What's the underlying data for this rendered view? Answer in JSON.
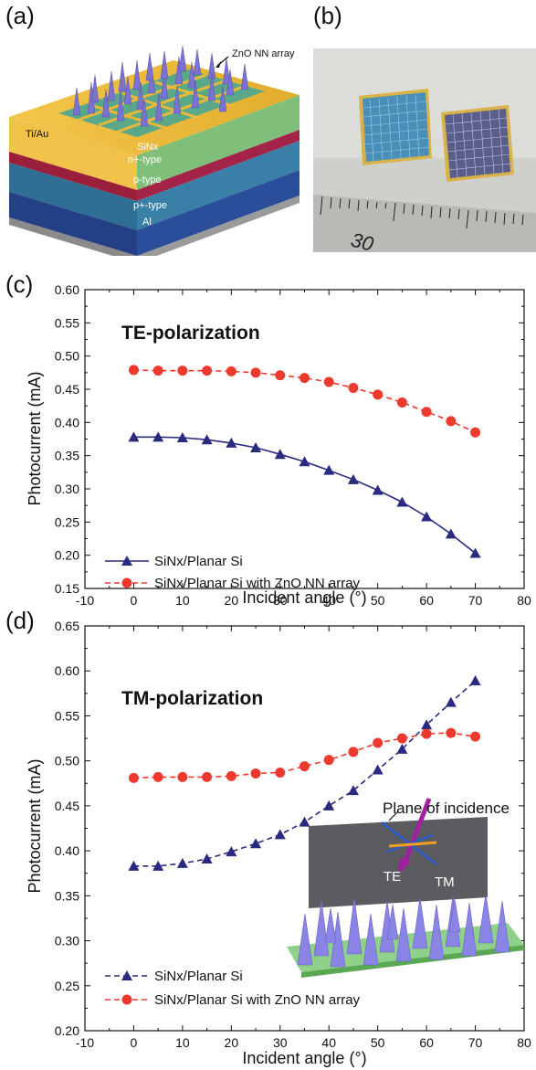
{
  "panels": {
    "a": "(a)",
    "b": "(b)",
    "c": "(c)",
    "d": "(d)"
  },
  "schematic": {
    "layers": [
      "Ti/Au",
      "SiNx",
      "n+-type",
      "p-type",
      "p+-type",
      "Al"
    ],
    "callout": "ZnO NN array",
    "photo_scale_number": "30"
  },
  "inset": {
    "plane_label": "Plane of incidence",
    "te_label": "TE",
    "tm_label": "TM"
  },
  "colors": {
    "series1": "#2a2a80",
    "series2": "#ee3a2e"
  },
  "chart_data": [
    {
      "type": "line",
      "title": "TE-polarization",
      "xlabel": "Incident angle (°)",
      "ylabel": "Photocurrent (mA)",
      "xlim": [
        -10,
        80
      ],
      "ylim": [
        0.15,
        0.6
      ],
      "xticks": [
        -10,
        0,
        10,
        20,
        30,
        40,
        50,
        60,
        70,
        80
      ],
      "yticks": [
        0.15,
        0.2,
        0.25,
        0.3,
        0.35,
        0.4,
        0.45,
        0.5,
        0.55,
        0.6
      ],
      "x": [
        0,
        5,
        10,
        15,
        20,
        25,
        30,
        35,
        40,
        45,
        50,
        55,
        60,
        65,
        70
      ],
      "series": [
        {
          "name": "SiNx/Planar Si",
          "marker": "triangle",
          "linestyle": "solid",
          "values": [
            0.378,
            0.378,
            0.377,
            0.374,
            0.369,
            0.362,
            0.352,
            0.341,
            0.328,
            0.314,
            0.298,
            0.28,
            0.258,
            0.232,
            0.203
          ]
        },
        {
          "name": "SiNx/Planar Si with ZnO NN array",
          "marker": "circle",
          "linestyle": "dashed",
          "values": [
            0.479,
            0.478,
            0.478,
            0.478,
            0.477,
            0.475,
            0.471,
            0.467,
            0.461,
            0.452,
            0.442,
            0.43,
            0.416,
            0.402,
            0.385
          ]
        }
      ],
      "legend_position": "bottom-left"
    },
    {
      "type": "line",
      "title": "TM-polarization",
      "xlabel": "Incident angle (°)",
      "ylabel": "Photocurrent (mA)",
      "xlim": [
        -10,
        80
      ],
      "ylim": [
        0.2,
        0.65
      ],
      "xticks": [
        -10,
        0,
        10,
        20,
        30,
        40,
        50,
        60,
        70,
        80
      ],
      "yticks": [
        0.2,
        0.25,
        0.3,
        0.35,
        0.4,
        0.45,
        0.5,
        0.55,
        0.6,
        0.65
      ],
      "x": [
        0,
        5,
        10,
        15,
        20,
        25,
        30,
        35,
        40,
        45,
        50,
        55,
        60,
        65,
        70
      ],
      "series": [
        {
          "name": "SiNx/Planar Si",
          "marker": "triangle",
          "linestyle": "dashed",
          "values": [
            0.383,
            0.383,
            0.386,
            0.391,
            0.399,
            0.408,
            0.418,
            0.432,
            0.45,
            0.467,
            0.49,
            0.513,
            0.54,
            0.565,
            0.589
          ]
        },
        {
          "name": "SiNx/Planar Si with ZnO NN array",
          "marker": "circle",
          "linestyle": "dashed",
          "values": [
            0.481,
            0.482,
            0.482,
            0.482,
            0.483,
            0.486,
            0.487,
            0.494,
            0.501,
            0.51,
            0.52,
            0.525,
            0.53,
            0.531,
            0.527
          ]
        }
      ],
      "legend_position": "bottom-left"
    }
  ]
}
